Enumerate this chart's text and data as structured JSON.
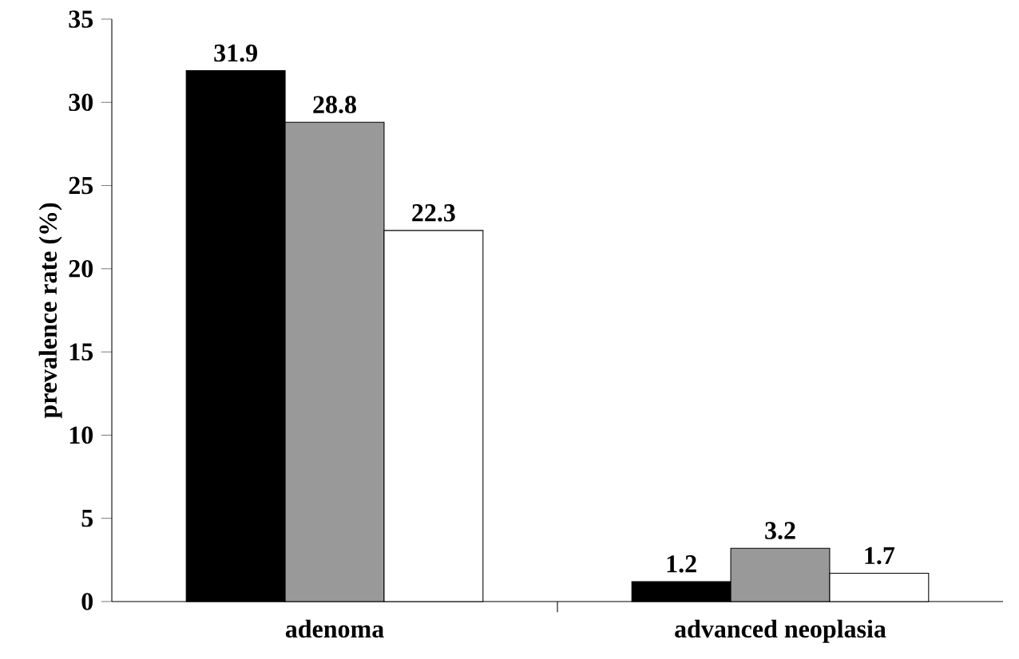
{
  "chart_data": {
    "type": "bar",
    "ylabel": "prevalence rate (%)",
    "categories": [
      "adenoma",
      "advanced neoplasia"
    ],
    "series": [
      {
        "color": "#000000",
        "values": [
          31.9,
          1.2
        ]
      },
      {
        "color": "#999999",
        "values": [
          28.8,
          3.2
        ]
      },
      {
        "color": "#ffffff",
        "values": [
          22.3,
          1.7
        ]
      }
    ],
    "ylim": [
      0,
      35
    ],
    "yticks": [
      0,
      5,
      10,
      15,
      20,
      25,
      30,
      35
    ],
    "data_labels": true,
    "grid": false
  }
}
